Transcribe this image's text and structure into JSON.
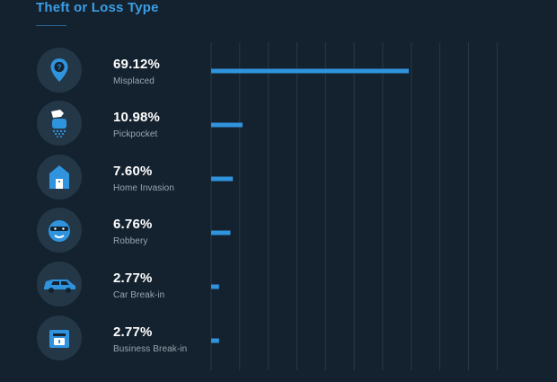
{
  "title": "Theft or Loss Type",
  "colors": {
    "background": "#14222f",
    "bar": "#2f93dd",
    "title": "#3b9ee6",
    "icon_fill": "#2f93dd",
    "icon_bg": "#233747",
    "gridline": "#263848",
    "label": "#9aa6b1",
    "value": "#ffffff"
  },
  "items": [
    {
      "value_text": "69.12%",
      "label": "Misplaced",
      "icon": "question-pin-icon"
    },
    {
      "value_text": "10.98%",
      "label": "Pickpocket",
      "icon": "hand-pocket-icon"
    },
    {
      "value_text": "7.60%",
      "label": "Home Invasion",
      "icon": "house-icon"
    },
    {
      "value_text": "6.76%",
      "label": "Robbery",
      "icon": "masked-robber-icon"
    },
    {
      "value_text": "2.77%",
      "label": "Car Break-in",
      "icon": "car-icon"
    },
    {
      "value_text": "2.77%",
      "label": "Business Break-in",
      "icon": "shop-icon"
    }
  ],
  "chart_data": {
    "type": "bar",
    "orientation": "horizontal",
    "title": "Theft or Loss Type",
    "categories": [
      "Misplaced",
      "Pickpocket",
      "Home Invasion",
      "Robbery",
      "Car Break-in",
      "Business Break-in"
    ],
    "values": [
      69.12,
      10.98,
      7.6,
      6.76,
      2.77,
      2.77
    ],
    "unit": "%",
    "grid": true,
    "xlim": [
      0,
      100
    ]
  }
}
